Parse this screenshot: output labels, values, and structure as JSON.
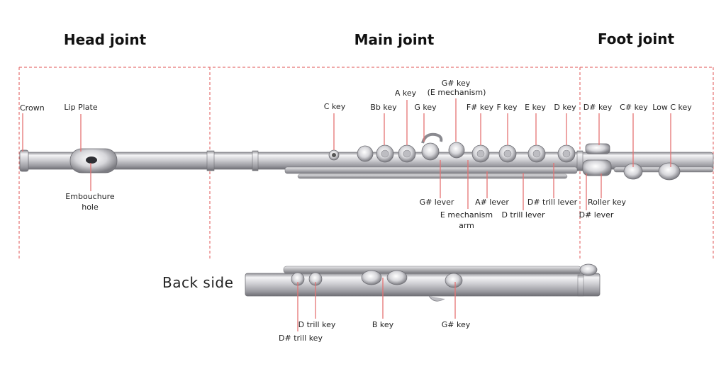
{
  "sections": {
    "head": "Head joint",
    "main": "Main joint",
    "foot": "Foot joint"
  },
  "labels": {
    "crown": "Crown",
    "lip_plate": "Lip Plate",
    "embouchure_hole": "Embouchure hole",
    "c_key": "C key",
    "bb_key": "Bb key",
    "a_key": "A key",
    "g_key": "G key",
    "g_sharp_key": "G# key",
    "e_mechanism": "(E mechanism)",
    "f_sharp_key": "F# key",
    "f_key": "F key",
    "e_key": "E key",
    "d_key": "D key",
    "d_sharp_key": "D# key",
    "c_sharp_key": "C# key",
    "low_c_key": "Low C key",
    "g_sharp_lever": "G# lever",
    "e_mechanism_arm": "E mechanism arm",
    "a_sharp_lever": "A# lever",
    "d_trill_lever": "D trill lever",
    "d_sharp_trill_lever": "D# trill lever",
    "roller_key": "Roller key",
    "d_sharp_lever": "D# lever"
  },
  "back": {
    "title": "Back side",
    "d_trill_key": "D trill key",
    "d_sharp_trill_key": "D# trill key",
    "b_key": "B key",
    "g_sharp_key": "G# key"
  },
  "colors": {
    "divider": "#e57373",
    "pointer": "#e57373",
    "metal": "#c8c8cc",
    "text": "#222222"
  }
}
